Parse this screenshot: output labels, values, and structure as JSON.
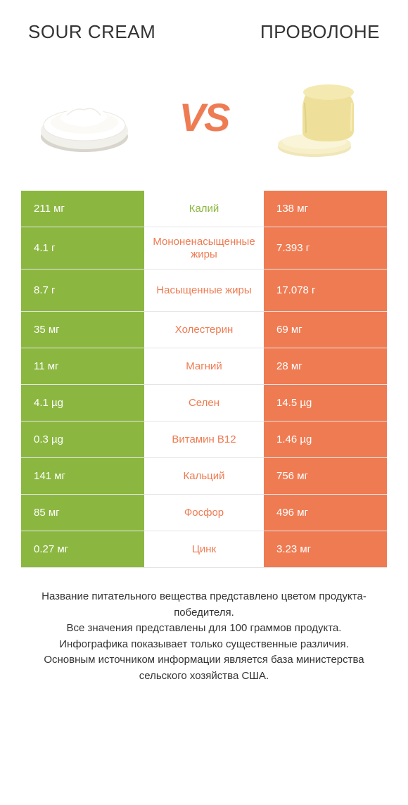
{
  "header": {
    "left_title": "SOUR CREAM",
    "right_title": "ПРОВОЛОНЕ"
  },
  "vs_label": "VS",
  "colors": {
    "left_bar": "#8bb741",
    "right_bar": "#ef7b52",
    "background": "#ffffff",
    "text": "#333333",
    "divider": "#e5e5e5"
  },
  "rows": [
    {
      "left": "211 мг",
      "label": "Калий",
      "right": "138 мг",
      "winner": "left",
      "tall": false
    },
    {
      "left": "4.1 г",
      "label": "Мононенасыщенные жиры",
      "right": "7.393 г",
      "winner": "right",
      "tall": true
    },
    {
      "left": "8.7 г",
      "label": "Насыщенные жиры",
      "right": "17.078 г",
      "winner": "right",
      "tall": true
    },
    {
      "left": "35 мг",
      "label": "Холестерин",
      "right": "69 мг",
      "winner": "right",
      "tall": false
    },
    {
      "left": "11 мг",
      "label": "Магний",
      "right": "28 мг",
      "winner": "right",
      "tall": false
    },
    {
      "left": "4.1 µg",
      "label": "Селен",
      "right": "14.5 µg",
      "winner": "right",
      "tall": false
    },
    {
      "left": "0.3 µg",
      "label": "Витамин B12",
      "right": "1.46 µg",
      "winner": "right",
      "tall": false
    },
    {
      "left": "141 мг",
      "label": "Кальций",
      "right": "756 мг",
      "winner": "right",
      "tall": false
    },
    {
      "left": "85 мг",
      "label": "Фосфор",
      "right": "496 мг",
      "winner": "right",
      "tall": false
    },
    {
      "left": "0.27 мг",
      "label": "Цинк",
      "right": "3.23 мг",
      "winner": "right",
      "tall": false
    }
  ],
  "footer": {
    "line1": "Название питательного вещества представлено цветом продукта-победителя.",
    "line2": "Все значения представлены для 100 граммов продукта.",
    "line3": "Инфографика показывает только существенные различия.",
    "line4": "Основным источником информации является база министерства сельского хозяйства США."
  }
}
